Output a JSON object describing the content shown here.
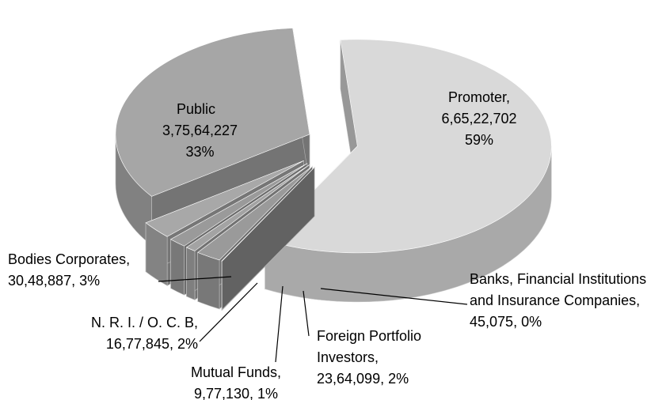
{
  "chart_data": {
    "type": "pie3d",
    "categories": [
      "Promoter",
      "Banks, Financial Institutions and Insurance Companies",
      "Foreign Portfolio Investors",
      "Mutual Funds",
      "N. R. I. / O. C. B",
      "Bodies Corporates",
      "Public"
    ],
    "values": [
      66522702,
      45075,
      2364099,
      977130,
      1677845,
      3048887,
      37564227
    ],
    "value_labels": [
      "6,65,22,702",
      "45,075",
      "23,64,099",
      "9,77,130",
      "16,77,845",
      "30,48,887",
      "3,75,64,227"
    ],
    "percents": [
      59,
      0,
      2,
      1,
      2,
      3,
      33
    ],
    "percent_labels": [
      "59%",
      "0%",
      "2%",
      "1%",
      "2%",
      "3%",
      "33%"
    ],
    "colors": [
      "#d9d9d9",
      "#8c8c8c",
      "#9a9a9a",
      "#a3a3a3",
      "#9a9a9a",
      "#a8a8a8",
      "#a6a6a6"
    ]
  }
}
